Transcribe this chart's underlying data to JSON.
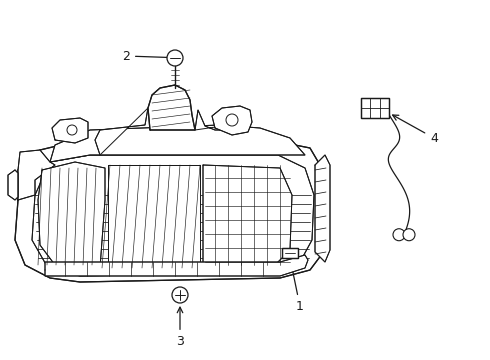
{
  "background_color": "#ffffff",
  "line_color": "#1a1a1a",
  "line_width": 0.9,
  "fig_width": 4.9,
  "fig_height": 3.6,
  "dpi": 100
}
